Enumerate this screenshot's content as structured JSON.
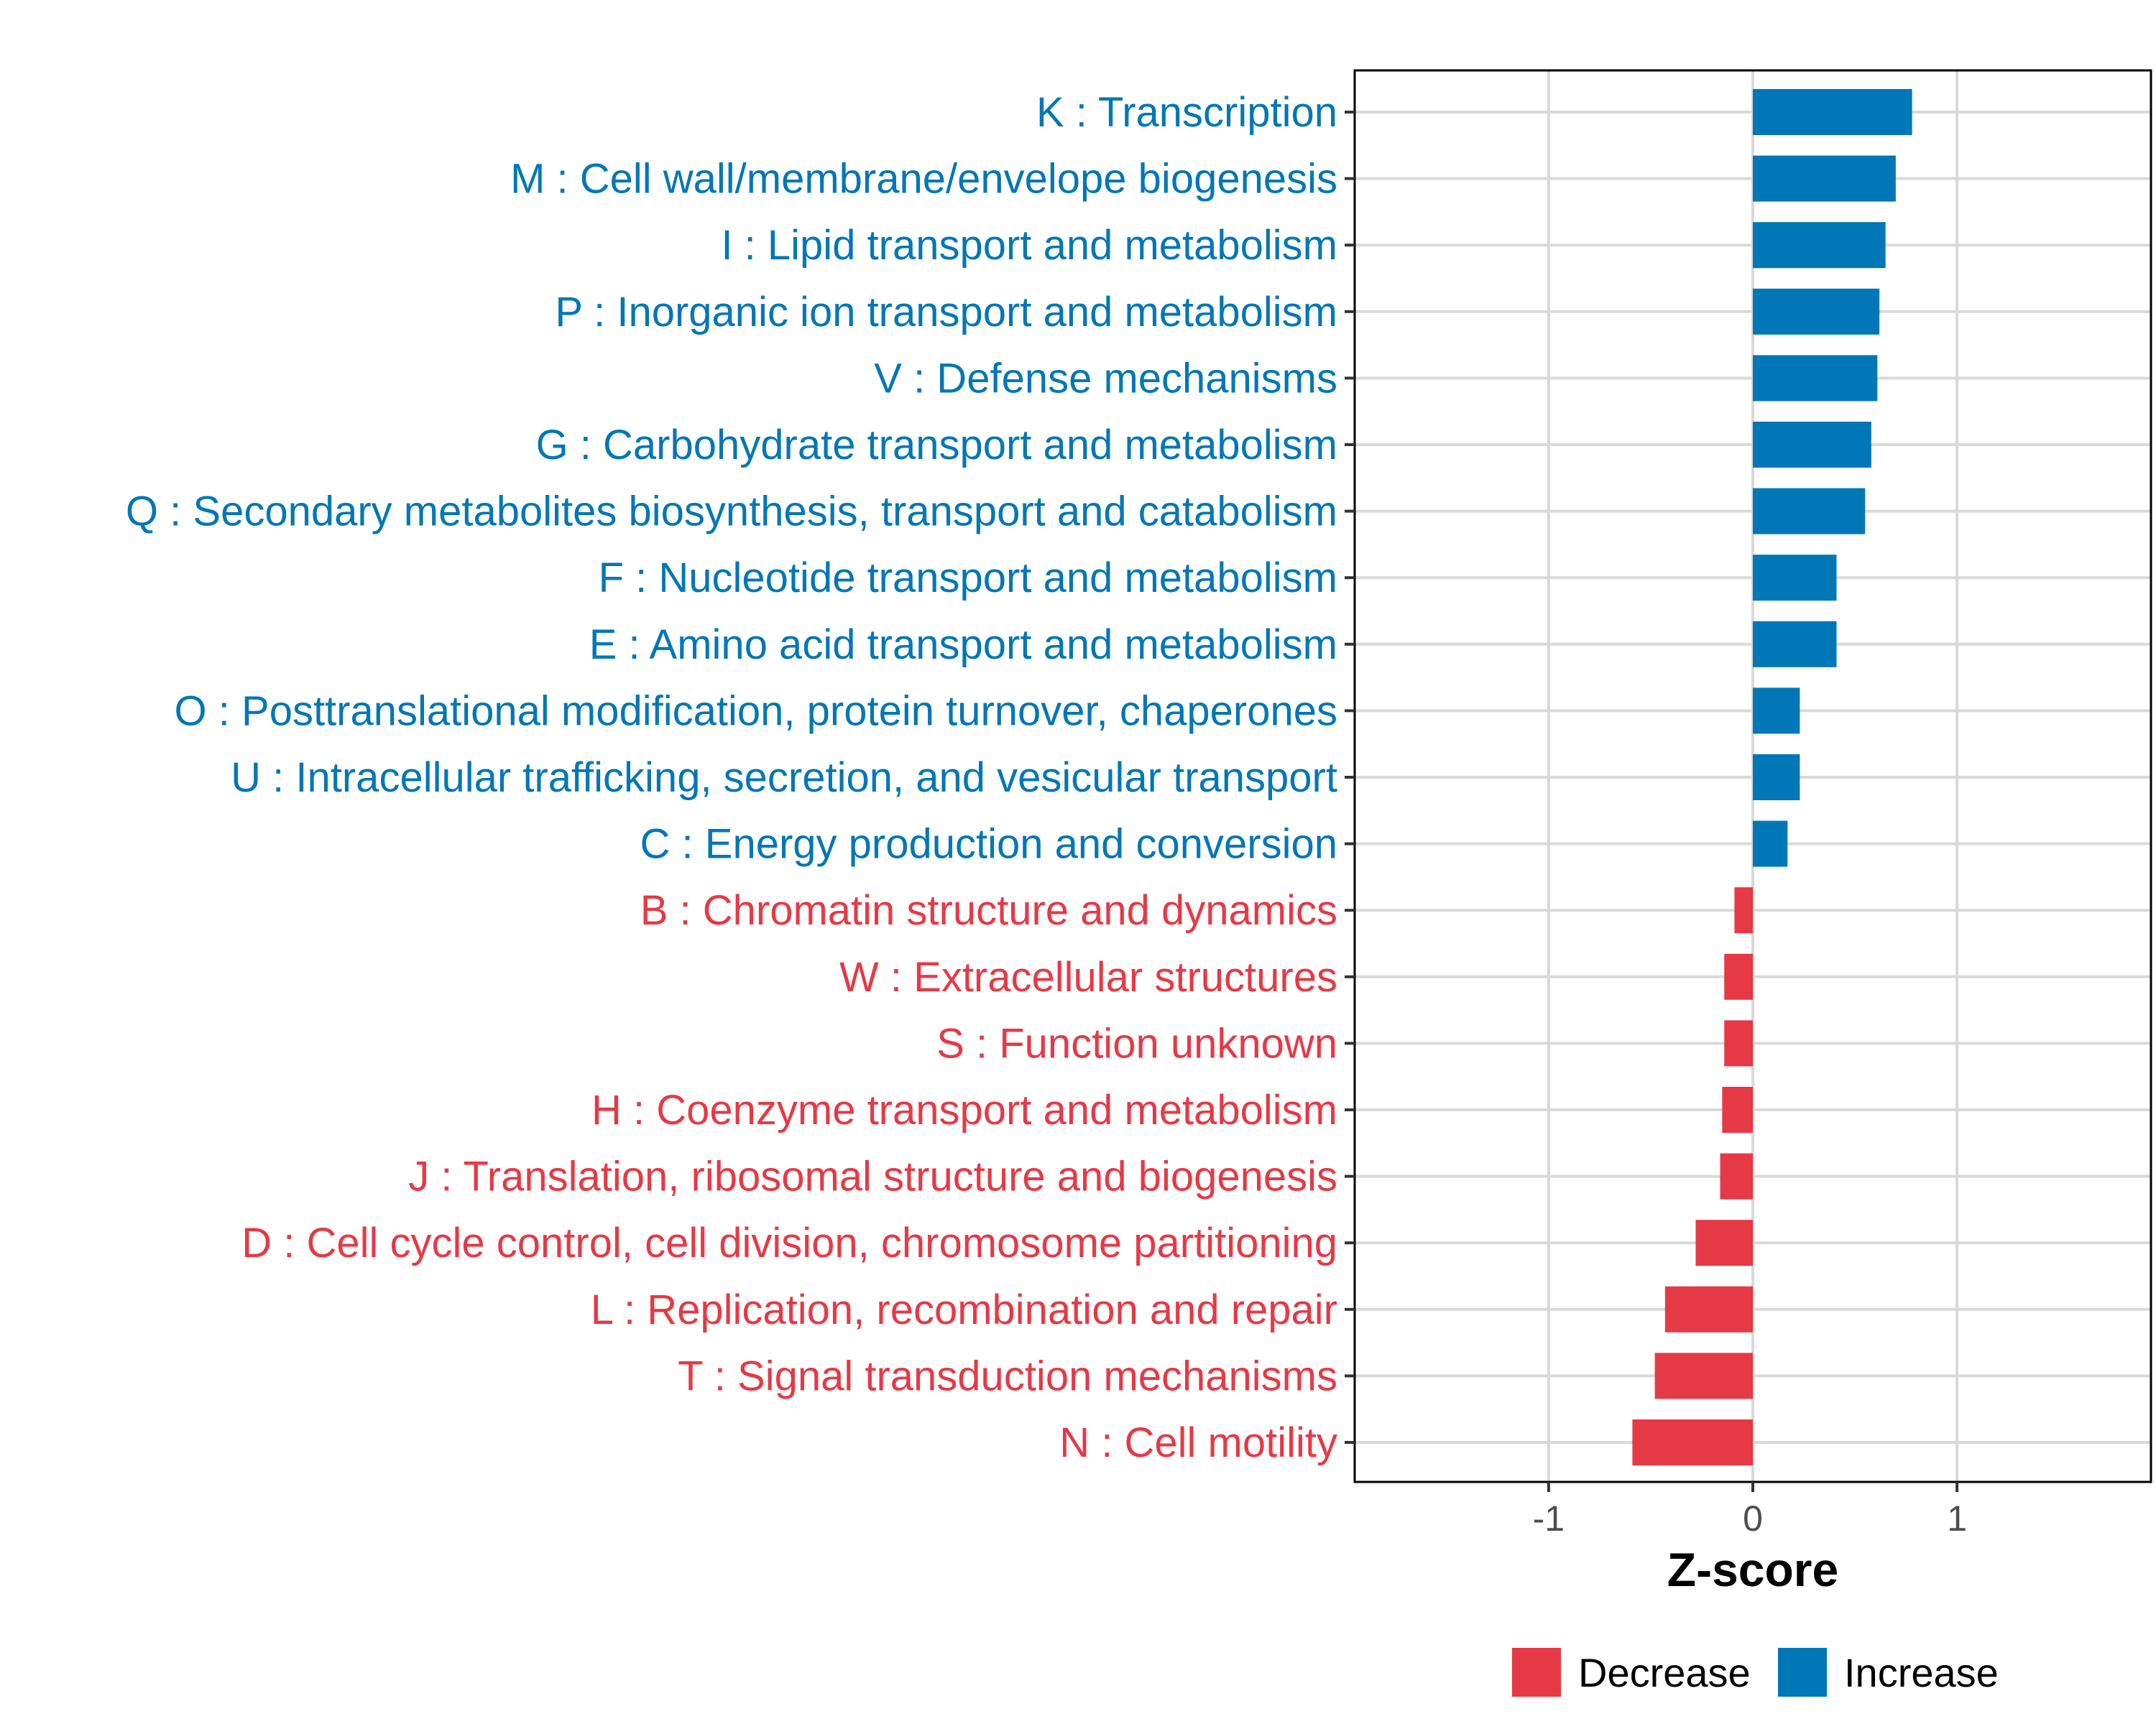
{
  "chart_data": {
    "type": "bar",
    "orientation": "horizontal",
    "title": "",
    "xlabel": "Z-score",
    "ylabel": "",
    "xlim": [
      -1.95,
      1.95
    ],
    "xticks": [
      -1,
      0,
      1
    ],
    "xtick_labels": [
      "-1",
      "0",
      "1"
    ],
    "grid": true,
    "legend_position": "bottom",
    "categories": [
      "K : Transcription",
      "M : Cell wall/membrane/envelope biogenesis",
      "I : Lipid transport and metabolism",
      "P : Inorganic ion transport and metabolism",
      "V : Defense mechanisms",
      "G : Carbohydrate transport and metabolism",
      "Q : Secondary metabolites biosynthesis, transport and catabolism",
      "F : Nucleotide transport and metabolism",
      "E : Amino acid transport and metabolism",
      "O : Posttranslational modification, protein turnover, chaperones",
      "U : Intracellular trafficking, secretion, and vesicular transport",
      "C : Energy production and conversion",
      "B : Chromatin structure and dynamics",
      "W : Extracellular structures",
      "S : Function unknown",
      "H : Coenzyme transport and metabolism",
      "J : Translation, ribosomal structure and biogenesis",
      "D : Cell cycle control, cell division, chromosome partitioning",
      "L : Replication, recombination and repair",
      "T : Signal transduction mechanisms",
      "N : Cell motility"
    ],
    "values": [
      0.78,
      0.7,
      0.65,
      0.62,
      0.61,
      0.58,
      0.55,
      0.41,
      0.41,
      0.23,
      0.23,
      0.17,
      -0.09,
      -0.14,
      -0.14,
      -0.15,
      -0.16,
      -0.28,
      -0.43,
      -0.48,
      -0.59
    ],
    "groups": [
      "Increase",
      "Increase",
      "Increase",
      "Increase",
      "Increase",
      "Increase",
      "Increase",
      "Increase",
      "Increase",
      "Increase",
      "Increase",
      "Increase",
      "Decrease",
      "Decrease",
      "Decrease",
      "Decrease",
      "Decrease",
      "Decrease",
      "Decrease",
      "Decrease",
      "Decrease"
    ],
    "legend": [
      {
        "name": "Decrease",
        "color": "#E63946"
      },
      {
        "name": "Increase",
        "color": "#0077B6"
      }
    ]
  },
  "colors": {
    "increase": "#0077B6",
    "decrease": "#E63946",
    "grid": "#d9d9d9",
    "panel_border": "#000000"
  }
}
